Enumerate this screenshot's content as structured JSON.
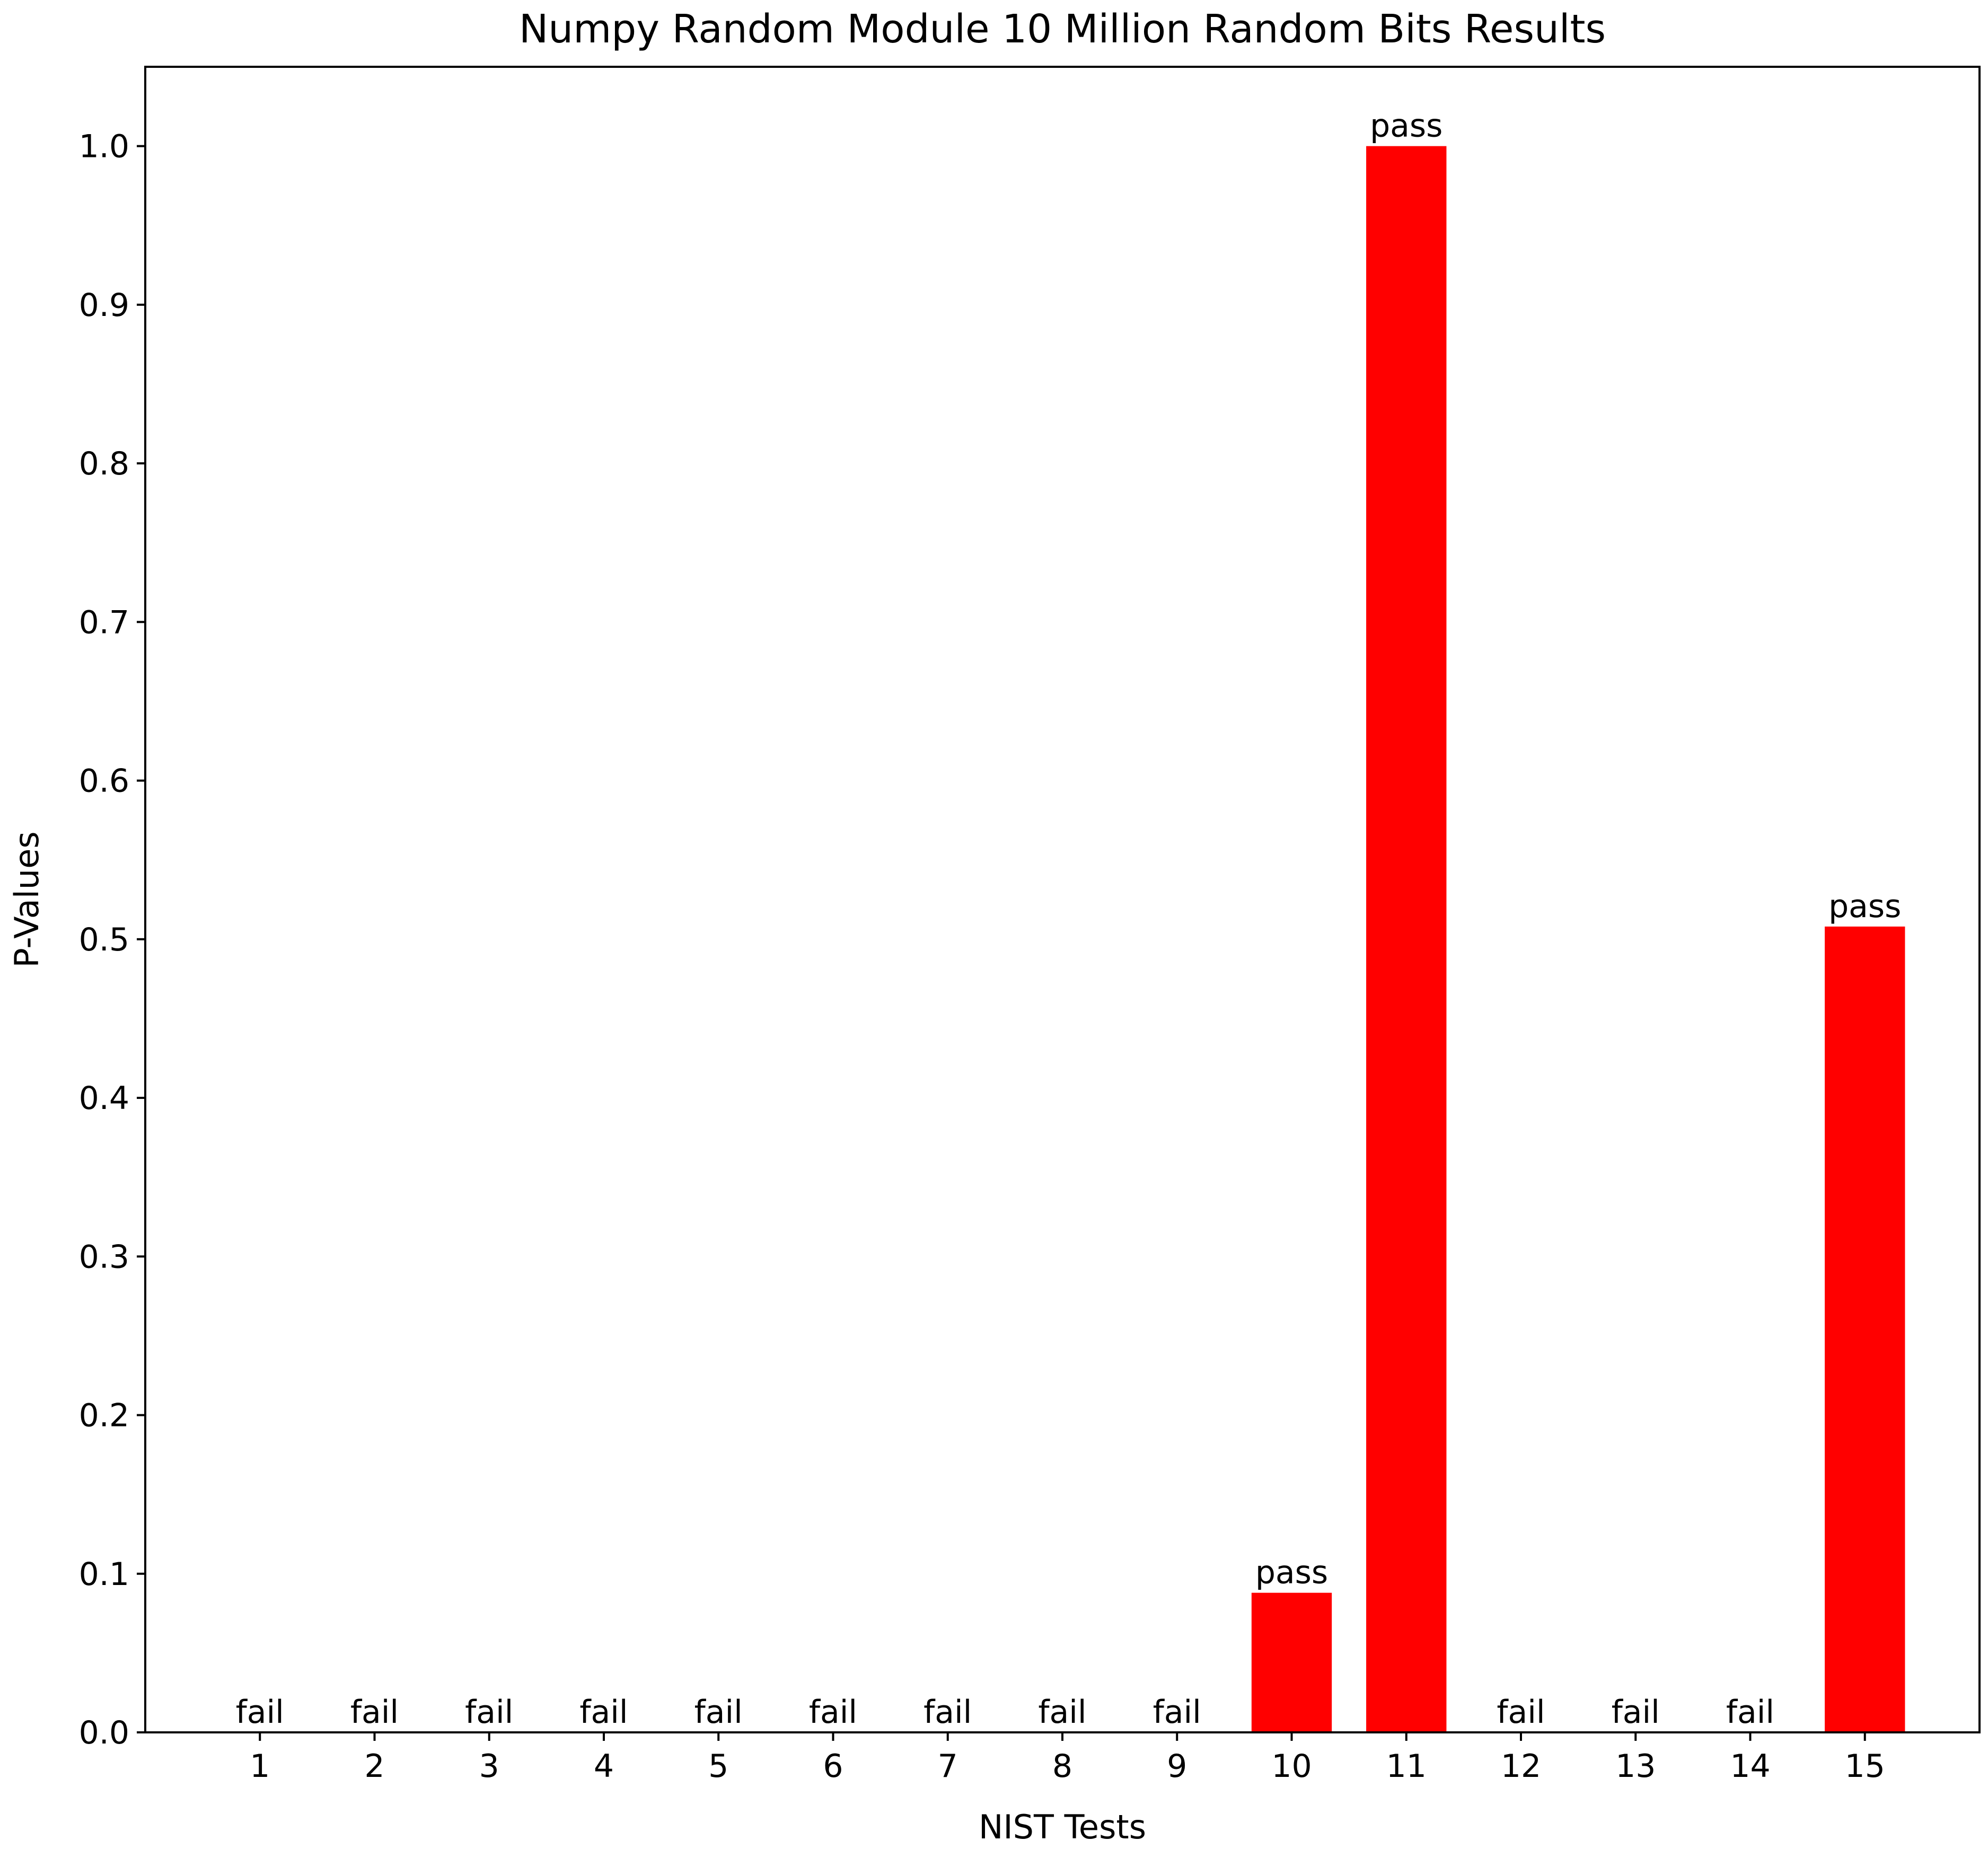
{
  "chart_data": {
    "type": "bar",
    "title": "Numpy Random Module 10 Million Random Bits Results",
    "xlabel": "NIST Tests",
    "ylabel": "P-Values",
    "categories": [
      "1",
      "2",
      "3",
      "4",
      "5",
      "6",
      "7",
      "8",
      "9",
      "10",
      "11",
      "12",
      "13",
      "14",
      "15"
    ],
    "values": [
      0,
      0,
      0,
      0,
      0,
      0,
      0,
      0,
      0,
      0.088,
      1.0,
      0,
      0,
      0,
      0.508
    ],
    "bar_labels": [
      "fail",
      "fail",
      "fail",
      "fail",
      "fail",
      "fail",
      "fail",
      "fail",
      "fail",
      "pass",
      "pass",
      "fail",
      "fail",
      "fail",
      "pass"
    ],
    "ylim": [
      0,
      1.05
    ],
    "yticks": [
      0.0,
      0.1,
      0.2,
      0.3,
      0.4,
      0.5,
      0.6,
      0.7,
      0.8,
      0.9,
      1.0
    ],
    "ytick_labels": [
      "0.0",
      "0.1",
      "0.2",
      "0.3",
      "0.4",
      "0.5",
      "0.6",
      "0.7",
      "0.8",
      "0.9",
      "1.0"
    ],
    "grid": false,
    "bar_color": "#ff0000"
  }
}
